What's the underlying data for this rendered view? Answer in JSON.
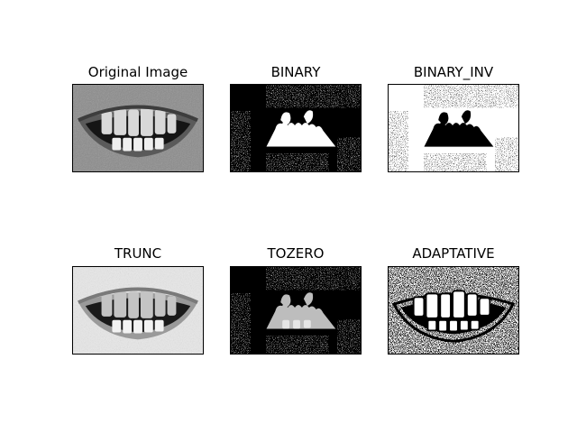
{
  "figure": {
    "panels": [
      {
        "title": "Original Image",
        "style": "original"
      },
      {
        "title": "BINARY",
        "style": "binary"
      },
      {
        "title": "BINARY_INV",
        "style": "binary_inv"
      },
      {
        "title": "TRUNC",
        "style": "trunc"
      },
      {
        "title": "TOZERO",
        "style": "tozero"
      },
      {
        "title": "ADAPTATIVE",
        "style": "adaptive"
      }
    ]
  }
}
